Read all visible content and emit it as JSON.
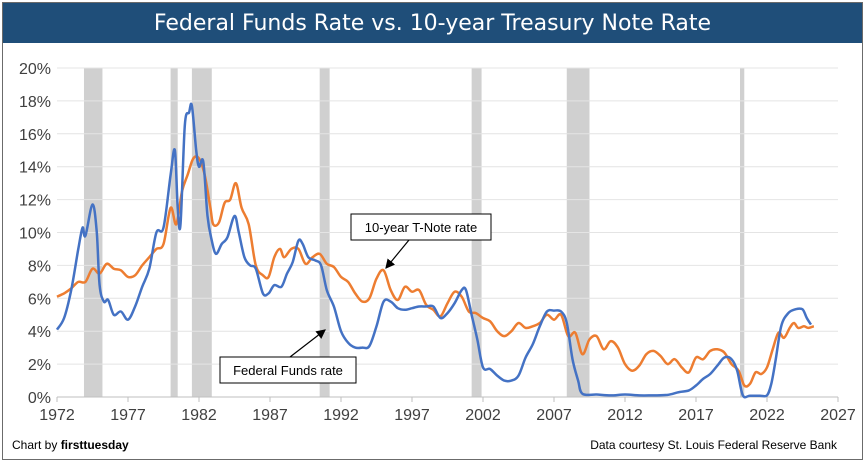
{
  "title": "Federal Funds Rate vs. 10-year Treasury Note Rate",
  "footer": {
    "credit_prefix": "Chart by ",
    "credit_brand": "firsttuesday",
    "source": "Data courtesy St. Louis Federal Reserve Bank"
  },
  "chart_data": {
    "type": "line",
    "title": "Federal Funds Rate vs. 10-year Treasury Note Rate",
    "xlim": [
      1972,
      2027
    ],
    "ylim": [
      0,
      20
    ],
    "x_ticks": [
      1972,
      1977,
      1982,
      1987,
      1992,
      1997,
      2002,
      2007,
      2012,
      2017,
      2022,
      2027
    ],
    "y_ticks": [
      "0%",
      "2%",
      "4%",
      "6%",
      "8%",
      "10%",
      "12%",
      "14%",
      "16%",
      "18%",
      "20%"
    ],
    "grid": true,
    "recessions": [
      [
        1973.9,
        1975.2
      ],
      [
        1980.0,
        1980.5
      ],
      [
        1981.5,
        1982.9
      ],
      [
        1990.5,
        1991.2
      ],
      [
        2001.2,
        2001.9
      ],
      [
        2007.9,
        2009.5
      ],
      [
        2020.1,
        2020.4
      ]
    ],
    "annotations": [
      {
        "text": "10-year T-Note rate",
        "series": "10-year T-Note rate"
      },
      {
        "text": "Federal Funds rate",
        "series": "Federal Funds rate"
      }
    ],
    "series": [
      {
        "name": "Federal Funds rate",
        "color": "#4472c4",
        "points": [
          [
            1972.0,
            4.1
          ],
          [
            1972.5,
            4.8
          ],
          [
            1973.0,
            6.5
          ],
          [
            1973.5,
            9.0
          ],
          [
            1973.8,
            10.3
          ],
          [
            1974.0,
            9.8
          ],
          [
            1974.5,
            11.7
          ],
          [
            1974.8,
            10.0
          ],
          [
            1975.0,
            6.8
          ],
          [
            1975.3,
            5.8
          ],
          [
            1975.6,
            5.9
          ],
          [
            1976.0,
            5.0
          ],
          [
            1976.5,
            5.2
          ],
          [
            1977.0,
            4.7
          ],
          [
            1977.5,
            5.5
          ],
          [
            1978.0,
            6.7
          ],
          [
            1978.5,
            7.8
          ],
          [
            1979.0,
            10.0
          ],
          [
            1979.5,
            10.3
          ],
          [
            1980.0,
            13.5
          ],
          [
            1980.3,
            15.0
          ],
          [
            1980.5,
            11.5
          ],
          [
            1980.7,
            10.5
          ],
          [
            1981.0,
            16.5
          ],
          [
            1981.3,
            17.3
          ],
          [
            1981.5,
            17.7
          ],
          [
            1981.8,
            15.0
          ],
          [
            1982.0,
            14.0
          ],
          [
            1982.3,
            14.3
          ],
          [
            1982.6,
            11.0
          ],
          [
            1982.9,
            9.5
          ],
          [
            1983.2,
            8.7
          ],
          [
            1983.6,
            9.3
          ],
          [
            1984.0,
            9.7
          ],
          [
            1984.5,
            11.0
          ],
          [
            1984.8,
            10.0
          ],
          [
            1985.2,
            8.5
          ],
          [
            1985.6,
            8.0
          ],
          [
            1986.0,
            7.8
          ],
          [
            1986.5,
            6.3
          ],
          [
            1986.9,
            6.3
          ],
          [
            1987.3,
            6.8
          ],
          [
            1987.8,
            6.7
          ],
          [
            1988.2,
            7.5
          ],
          [
            1988.6,
            8.2
          ],
          [
            1989.0,
            9.5
          ],
          [
            1989.3,
            9.3
          ],
          [
            1989.7,
            8.5
          ],
          [
            1990.2,
            8.3
          ],
          [
            1990.6,
            8.0
          ],
          [
            1991.0,
            6.5
          ],
          [
            1991.5,
            5.5
          ],
          [
            1992.0,
            4.0
          ],
          [
            1992.5,
            3.3
          ],
          [
            1993.0,
            3.0
          ],
          [
            1993.5,
            3.0
          ],
          [
            1994.0,
            3.1
          ],
          [
            1994.5,
            4.3
          ],
          [
            1995.0,
            5.8
          ],
          [
            1995.5,
            5.8
          ],
          [
            1996.0,
            5.4
          ],
          [
            1996.5,
            5.3
          ],
          [
            1997.0,
            5.4
          ],
          [
            1997.5,
            5.5
          ],
          [
            1998.0,
            5.5
          ],
          [
            1998.5,
            5.5
          ],
          [
            1999.0,
            4.8
          ],
          [
            1999.5,
            5.1
          ],
          [
            2000.0,
            5.7
          ],
          [
            2000.5,
            6.5
          ],
          [
            2000.8,
            6.5
          ],
          [
            2001.2,
            5.0
          ],
          [
            2001.6,
            3.5
          ],
          [
            2002.0,
            1.8
          ],
          [
            2002.5,
            1.7
          ],
          [
            2003.0,
            1.3
          ],
          [
            2003.5,
            1.0
          ],
          [
            2004.0,
            1.0
          ],
          [
            2004.5,
            1.3
          ],
          [
            2005.0,
            2.4
          ],
          [
            2005.5,
            3.2
          ],
          [
            2006.0,
            4.3
          ],
          [
            2006.5,
            5.2
          ],
          [
            2007.0,
            5.25
          ],
          [
            2007.5,
            5.2
          ],
          [
            2007.9,
            4.5
          ],
          [
            2008.3,
            2.3
          ],
          [
            2008.7,
            1.0
          ],
          [
            2009.0,
            0.2
          ],
          [
            2010.0,
            0.15
          ],
          [
            2011.0,
            0.1
          ],
          [
            2012.0,
            0.15
          ],
          [
            2013.0,
            0.1
          ],
          [
            2014.0,
            0.1
          ],
          [
            2015.0,
            0.13
          ],
          [
            2015.8,
            0.3
          ],
          [
            2016.5,
            0.4
          ],
          [
            2017.0,
            0.7
          ],
          [
            2017.5,
            1.1
          ],
          [
            2018.0,
            1.4
          ],
          [
            2018.5,
            1.9
          ],
          [
            2019.0,
            2.4
          ],
          [
            2019.5,
            2.3
          ],
          [
            2019.9,
            1.6
          ],
          [
            2020.3,
            0.1
          ],
          [
            2020.8,
            0.08
          ],
          [
            2021.5,
            0.08
          ],
          [
            2022.0,
            0.1
          ],
          [
            2022.3,
            0.8
          ],
          [
            2022.6,
            2.2
          ],
          [
            2023.0,
            4.3
          ],
          [
            2023.5,
            5.1
          ],
          [
            2024.0,
            5.33
          ],
          [
            2024.5,
            5.33
          ],
          [
            2024.8,
            4.8
          ],
          [
            2025.1,
            4.4
          ]
        ]
      },
      {
        "name": "10-year T-Note rate",
        "color": "#ed7d31",
        "points": [
          [
            1972.0,
            6.1
          ],
          [
            1972.5,
            6.3
          ],
          [
            1973.0,
            6.6
          ],
          [
            1973.5,
            7.0
          ],
          [
            1974.0,
            7.0
          ],
          [
            1974.5,
            7.8
          ],
          [
            1975.0,
            7.5
          ],
          [
            1975.5,
            8.1
          ],
          [
            1976.0,
            7.8
          ],
          [
            1976.5,
            7.7
          ],
          [
            1977.0,
            7.3
          ],
          [
            1977.5,
            7.4
          ],
          [
            1978.0,
            8.0
          ],
          [
            1978.5,
            8.5
          ],
          [
            1979.0,
            9.0
          ],
          [
            1979.5,
            9.3
          ],
          [
            1980.0,
            11.5
          ],
          [
            1980.4,
            10.5
          ],
          [
            1980.8,
            12.5
          ],
          [
            1981.2,
            13.5
          ],
          [
            1981.6,
            14.5
          ],
          [
            1982.0,
            14.5
          ],
          [
            1982.4,
            13.5
          ],
          [
            1982.8,
            11.5
          ],
          [
            1983.0,
            10.5
          ],
          [
            1983.4,
            10.6
          ],
          [
            1983.8,
            11.8
          ],
          [
            1984.2,
            12.0
          ],
          [
            1984.6,
            13.0
          ],
          [
            1985.0,
            11.5
          ],
          [
            1985.5,
            10.5
          ],
          [
            1986.0,
            8.0
          ],
          [
            1986.5,
            7.4
          ],
          [
            1986.9,
            7.3
          ],
          [
            1987.3,
            8.5
          ],
          [
            1987.7,
            9.0
          ],
          [
            1988.0,
            8.5
          ],
          [
            1988.5,
            9.0
          ],
          [
            1989.0,
            9.0
          ],
          [
            1989.5,
            8.1
          ],
          [
            1990.0,
            8.5
          ],
          [
            1990.5,
            8.7
          ],
          [
            1991.0,
            8.1
          ],
          [
            1991.5,
            7.9
          ],
          [
            1992.0,
            7.3
          ],
          [
            1992.5,
            7.0
          ],
          [
            1993.0,
            6.3
          ],
          [
            1993.5,
            5.8
          ],
          [
            1994.0,
            6.0
          ],
          [
            1994.5,
            7.2
          ],
          [
            1995.0,
            7.7
          ],
          [
            1995.5,
            6.5
          ],
          [
            1996.0,
            5.9
          ],
          [
            1996.5,
            6.7
          ],
          [
            1997.0,
            6.4
          ],
          [
            1997.5,
            6.5
          ],
          [
            1998.0,
            5.6
          ],
          [
            1998.5,
            5.3
          ],
          [
            1999.0,
            4.9
          ],
          [
            1999.5,
            5.7
          ],
          [
            2000.0,
            6.4
          ],
          [
            2000.5,
            6.1
          ],
          [
            2001.0,
            5.2
          ],
          [
            2001.5,
            5.1
          ],
          [
            2002.0,
            4.8
          ],
          [
            2002.5,
            4.6
          ],
          [
            2003.0,
            4.0
          ],
          [
            2003.5,
            3.7
          ],
          [
            2004.0,
            4.0
          ],
          [
            2004.5,
            4.5
          ],
          [
            2005.0,
            4.2
          ],
          [
            2005.5,
            4.3
          ],
          [
            2006.0,
            4.5
          ],
          [
            2006.5,
            5.0
          ],
          [
            2007.0,
            4.7
          ],
          [
            2007.5,
            5.0
          ],
          [
            2008.0,
            3.7
          ],
          [
            2008.5,
            3.9
          ],
          [
            2009.0,
            2.6
          ],
          [
            2009.5,
            3.5
          ],
          [
            2010.0,
            3.7
          ],
          [
            2010.5,
            2.9
          ],
          [
            2011.0,
            3.4
          ],
          [
            2011.5,
            3.0
          ],
          [
            2012.0,
            2.0
          ],
          [
            2012.5,
            1.6
          ],
          [
            2013.0,
            1.9
          ],
          [
            2013.5,
            2.6
          ],
          [
            2014.0,
            2.8
          ],
          [
            2014.5,
            2.5
          ],
          [
            2015.0,
            2.0
          ],
          [
            2015.5,
            2.3
          ],
          [
            2016.0,
            1.8
          ],
          [
            2016.5,
            1.5
          ],
          [
            2017.0,
            2.4
          ],
          [
            2017.5,
            2.3
          ],
          [
            2018.0,
            2.8
          ],
          [
            2018.5,
            2.9
          ],
          [
            2019.0,
            2.7
          ],
          [
            2019.5,
            2.0
          ],
          [
            2020.0,
            1.6
          ],
          [
            2020.4,
            0.7
          ],
          [
            2020.8,
            0.8
          ],
          [
            2021.2,
            1.5
          ],
          [
            2021.6,
            1.4
          ],
          [
            2022.0,
            1.8
          ],
          [
            2022.4,
            2.9
          ],
          [
            2022.8,
            3.9
          ],
          [
            2023.2,
            3.6
          ],
          [
            2023.6,
            4.2
          ],
          [
            2023.9,
            4.5
          ],
          [
            2024.2,
            4.2
          ],
          [
            2024.6,
            4.3
          ],
          [
            2024.9,
            4.2
          ],
          [
            2025.3,
            4.3
          ]
        ]
      }
    ]
  }
}
